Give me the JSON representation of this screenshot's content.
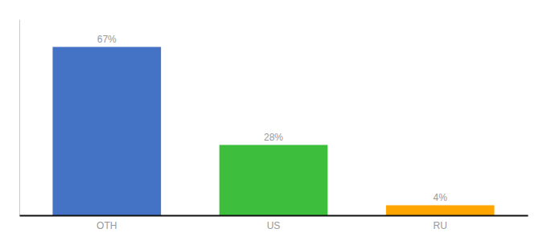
{
  "chart_data": {
    "type": "bar",
    "categories": [
      "OTH",
      "US",
      "RU"
    ],
    "values": [
      67,
      28,
      4
    ],
    "value_labels": [
      "67%",
      "28%",
      "4%"
    ],
    "data_labels": true,
    "colors": [
      "#4472C4",
      "#3DBE3D",
      "#FFA500"
    ],
    "ylim": [
      0,
      78
    ],
    "tick_labels": "x",
    "grid": false
  }
}
